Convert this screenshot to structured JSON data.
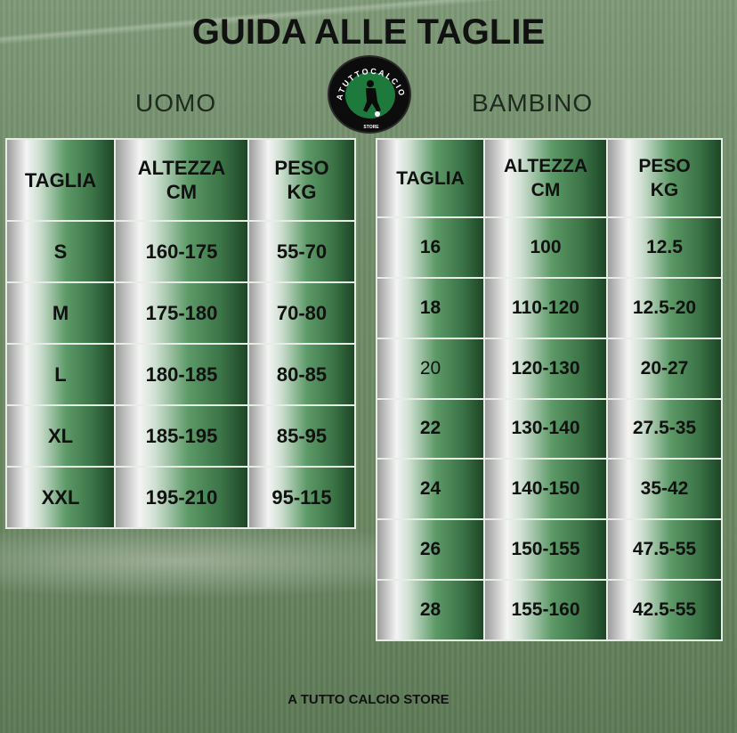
{
  "title": "GUIDA ALLE TAGLIE",
  "logo": {
    "ring_text": "ATUTTOCALCIO",
    "bottom_text": "STORE",
    "colors": {
      "ring": "#0c0c0c",
      "center": "#1d7a3c"
    }
  },
  "uomo": {
    "label": "UOMO",
    "headers": [
      "TAGLIA",
      "ALTEZZA\nCM",
      "PESO\nKG"
    ],
    "rows": [
      [
        "S",
        "160-175",
        "55-70"
      ],
      [
        "M",
        "175-180",
        "70-80"
      ],
      [
        "L",
        "180-185",
        "80-85"
      ],
      [
        "XL",
        "185-195",
        "85-95"
      ],
      [
        "XXL",
        "195-210",
        "95-115"
      ]
    ]
  },
  "bambino": {
    "label": "BAMBINO",
    "headers": [
      "TAGLIA",
      "ALTEZZA\nCM",
      "PESO\nKG"
    ],
    "rows": [
      [
        "16",
        "100",
        "12.5"
      ],
      [
        "18",
        "110-120",
        "12.5-20"
      ],
      [
        "20",
        "120-130",
        "20-27"
      ],
      [
        "22",
        "130-140",
        "27.5-35"
      ],
      [
        "24",
        "140-150",
        "35-42"
      ],
      [
        "26",
        "150-155",
        "47.5-55"
      ],
      [
        "28",
        "155-160",
        "42.5-55"
      ]
    ]
  },
  "footer": "A TUTTO CALCIO STORE",
  "colors": {
    "cell_dark": "#1d4526",
    "cell_mid": "#5d9a68",
    "cell_light": "#f4f4f4"
  }
}
